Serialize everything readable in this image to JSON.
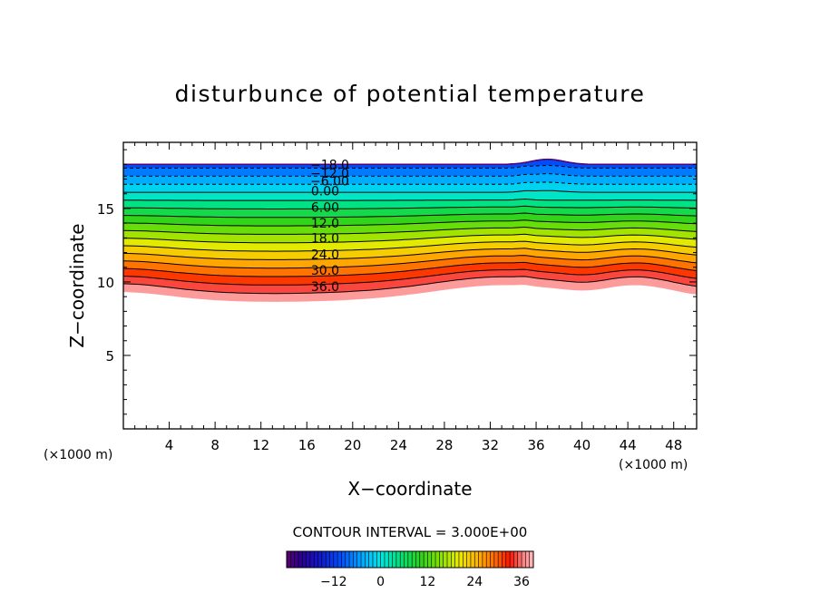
{
  "chart_data": {
    "type": "contour",
    "title": "disturbunce of potential temperature",
    "xlabel": "X−coordinate",
    "ylabel": "Z−coordinate",
    "x_unit": "(×1000 m)",
    "y_unit": "(×1000 m)",
    "xlim": [
      0,
      50
    ],
    "ylim": [
      0,
      19.5
    ],
    "x_ticks": [
      4,
      8,
      12,
      16,
      20,
      24,
      28,
      32,
      36,
      40,
      44,
      48
    ],
    "x_tick_labels": [
      "4",
      "8",
      "12",
      "16",
      "20",
      "24",
      "28",
      "32",
      "36",
      "40",
      "44",
      "48"
    ],
    "y_ticks": [
      5,
      10,
      15
    ],
    "y_tick_labels": [
      "5",
      "10",
      "15"
    ],
    "contour_interval_text": "CONTOUR INTERVAL = 3.000E+00",
    "contour_interval": 3,
    "value_range": [
      -24,
      39
    ],
    "contour_labels": [
      {
        "value": -18,
        "text": "−18.0",
        "x": 18.0,
        "z": 17.9
      },
      {
        "value": -12,
        "text": "−12.0",
        "x": 18.0,
        "z": 17.3
      },
      {
        "value": -6,
        "text": "−6.00",
        "x": 18.0,
        "z": 16.8
      },
      {
        "value": 0,
        "text": "0.00",
        "x": 17.6,
        "z": 16.1
      },
      {
        "value": 6,
        "text": "6.00",
        "x": 17.6,
        "z": 15.0
      },
      {
        "value": 12,
        "text": "12.0",
        "x": 17.6,
        "z": 13.9
      },
      {
        "value": 18,
        "text": "18.0",
        "x": 17.6,
        "z": 12.9
      },
      {
        "value": 24,
        "text": "24.0",
        "x": 17.6,
        "z": 11.8
      },
      {
        "value": 30,
        "text": "30.0",
        "x": 17.6,
        "z": 10.7
      },
      {
        "value": 36,
        "text": "36.0",
        "x": 17.6,
        "z": 9.6
      }
    ],
    "colorbar": {
      "tick_values": [
        -12,
        0,
        12,
        24,
        36
      ],
      "tick_labels": [
        "−12",
        "0",
        "12",
        "24",
        "36"
      ]
    }
  }
}
